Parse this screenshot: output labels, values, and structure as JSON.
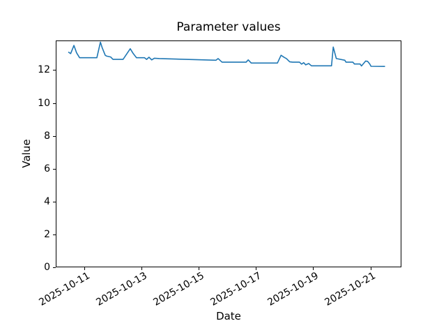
{
  "figure": {
    "title": "Parameter values",
    "x_axis_label": "Date",
    "y_axis_label": "Value"
  },
  "colors": {
    "line": "#1f77b4",
    "axes": "#000000",
    "background": "#ffffff",
    "text": "#000000"
  },
  "chart_data": {
    "type": "line",
    "title": "Parameter values",
    "xlabel": "Date",
    "ylabel": "Value",
    "grid": false,
    "legend": false,
    "marker": "none",
    "x_tick_labels": [
      "2025-10-11",
      "2025-10-13",
      "2025-10-15",
      "2025-10-17",
      "2025-10-19",
      "2025-10-21"
    ],
    "y_ticks": [
      0,
      2,
      4,
      6,
      8,
      10,
      12
    ],
    "y_tick_labels": [
      "0",
      "2",
      "4",
      "6",
      "8",
      "10",
      "12"
    ],
    "xlim": [
      "2025-10-10T00:00",
      "2025-10-22T02:00"
    ],
    "ylim": [
      0,
      13.8
    ],
    "series": [
      {
        "name": "Parameter values",
        "color": "#1f77b4",
        "points": [
          [
            "2025-10-10T10:30",
            13.1
          ],
          [
            "2025-10-10T12:30",
            13.0
          ],
          [
            "2025-10-10T15:15",
            13.5
          ],
          [
            "2025-10-10T17:30",
            13.05
          ],
          [
            "2025-10-10T20:00",
            12.75
          ],
          [
            "2025-10-11T10:30",
            12.75
          ],
          [
            "2025-10-11T13:30",
            13.7
          ],
          [
            "2025-10-11T15:00",
            13.35
          ],
          [
            "2025-10-11T17:30",
            12.9
          ],
          [
            "2025-10-11T18:45",
            12.85
          ],
          [
            "2025-10-11T22:00",
            12.8
          ],
          [
            "2025-10-12T00:00",
            12.65
          ],
          [
            "2025-10-12T08:30",
            12.65
          ],
          [
            "2025-10-12T14:30",
            13.3
          ],
          [
            "2025-10-12T17:00",
            13.0
          ],
          [
            "2025-10-12T19:45",
            12.75
          ],
          [
            "2025-10-13T02:30",
            12.75
          ],
          [
            "2025-10-13T04:15",
            12.65
          ],
          [
            "2025-10-13T06:15",
            12.78
          ],
          [
            "2025-10-13T08:30",
            12.62
          ],
          [
            "2025-10-13T10:45",
            12.72
          ],
          [
            "2025-10-13T15:00",
            12.7
          ],
          [
            "2025-10-15T14:30",
            12.6
          ],
          [
            "2025-10-15T16:15",
            12.7
          ],
          [
            "2025-10-15T19:30",
            12.48
          ],
          [
            "2025-10-16T15:45",
            12.48
          ],
          [
            "2025-10-16T17:30",
            12.62
          ],
          [
            "2025-10-16T20:00",
            12.43
          ],
          [
            "2025-10-17T18:00",
            12.43
          ],
          [
            "2025-10-17T21:00",
            12.9
          ],
          [
            "2025-10-17T23:45",
            12.77
          ],
          [
            "2025-10-18T01:30",
            12.7
          ],
          [
            "2025-10-18T04:15",
            12.5
          ],
          [
            "2025-10-18T06:45",
            12.48
          ],
          [
            "2025-10-18T12:30",
            12.48
          ],
          [
            "2025-10-18T14:15",
            12.36
          ],
          [
            "2025-10-18T16:00",
            12.45
          ],
          [
            "2025-10-18T17:45",
            12.32
          ],
          [
            "2025-10-18T20:15",
            12.4
          ],
          [
            "2025-10-18T22:30",
            12.26
          ],
          [
            "2025-10-19T15:20",
            12.26
          ],
          [
            "2025-10-19T16:50",
            13.4
          ],
          [
            "2025-10-19T19:25",
            12.7
          ],
          [
            "2025-10-20T02:30",
            12.6
          ],
          [
            "2025-10-20T03:30",
            12.48
          ],
          [
            "2025-10-20T09:20",
            12.48
          ],
          [
            "2025-10-20T10:35",
            12.37
          ],
          [
            "2025-10-20T15:20",
            12.37
          ],
          [
            "2025-10-20T16:30",
            12.25
          ],
          [
            "2025-10-20T18:15",
            12.4
          ],
          [
            "2025-10-20T20:00",
            12.55
          ],
          [
            "2025-10-20T21:40",
            12.53
          ],
          [
            "2025-10-20T23:30",
            12.36
          ],
          [
            "2025-10-21T00:30",
            12.23
          ],
          [
            "2025-10-21T12:15",
            12.22
          ]
        ]
      }
    ]
  }
}
